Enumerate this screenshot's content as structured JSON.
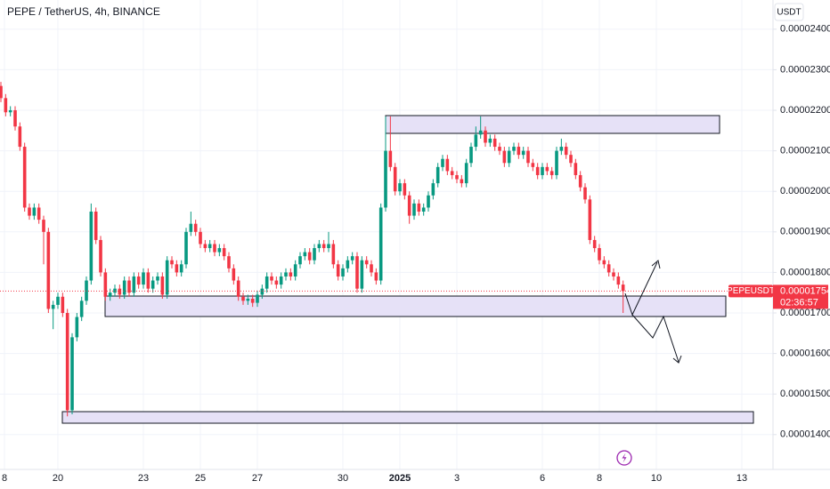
{
  "chart_data": {
    "type": "candlestick",
    "title": "PEPE / TetherUS, 4h, BINANCE",
    "currency": "USDT",
    "up_color": "#089981",
    "down_color": "#f23645",
    "grid": true,
    "ylim": [
      1.314e-05,
      2.472e-05
    ],
    "yticks": [
      {
        "value": 2.4e-05,
        "label": "0.00002400"
      },
      {
        "value": 2.3e-05,
        "label": "0.00002300"
      },
      {
        "value": 2.2e-05,
        "label": "0.00002200"
      },
      {
        "value": 2.1e-05,
        "label": "0.00002100"
      },
      {
        "value": 2e-05,
        "label": "0.00002000"
      },
      {
        "value": 1.9e-05,
        "label": "0.00001900"
      },
      {
        "value": 1.8e-05,
        "label": "0.00001800"
      },
      {
        "value": 1.7e-05,
        "label": "0.00001700"
      },
      {
        "value": 1.6e-05,
        "label": "0.00001600"
      },
      {
        "value": 1.5e-05,
        "label": "0.00001500"
      },
      {
        "value": 1.4e-05,
        "label": "0.00001400"
      }
    ],
    "xlim": [
      -0.19,
      162.56
    ],
    "xticks": [
      {
        "value": 0.75,
        "label": "8"
      },
      {
        "value": 12,
        "label": "20"
      },
      {
        "value": 30,
        "label": "23"
      },
      {
        "value": 42,
        "label": "25"
      },
      {
        "value": 54,
        "label": "27"
      },
      {
        "value": 72,
        "label": "30"
      },
      {
        "value": 84,
        "label": "2025"
      },
      {
        "value": 96,
        "label": "3"
      },
      {
        "value": 114,
        "label": "6"
      },
      {
        "value": 126,
        "label": "8"
      },
      {
        "value": 138,
        "label": "10"
      },
      {
        "value": 156,
        "label": "13"
      }
    ],
    "open": [
      2.26e-05,
      2.23e-05,
      2.195e-05,
      2.2e-05,
      2.16e-05,
      2.11e-05,
      1.96e-05,
      1.94e-05,
      1.96e-05,
      1.93e-05,
      1.9e-05,
      1.71e-05,
      1.72e-05,
      1.74e-05,
      1.7e-05,
      1.46e-05,
      1.64e-05,
      1.69e-05,
      1.73e-05,
      1.78e-05,
      1.95e-05,
      1.88e-05,
      1.8e-05,
      1.74e-05,
      1.75e-05,
      1.76e-05,
      1.745e-05,
      1.78e-05,
      1.75e-05,
      1.79e-05,
      1.77e-05,
      1.8e-05,
      1.76e-05,
      1.78e-05,
      1.79e-05,
      1.745e-05,
      1.83e-05,
      1.82e-05,
      1.8e-05,
      1.82e-05,
      1.9e-05,
      1.92e-05,
      1.9e-05,
      1.87e-05,
      1.86e-05,
      1.87e-05,
      1.85e-05,
      1.86e-05,
      1.84e-05,
      1.81e-05,
      1.78e-05,
      1.74e-05,
      1.73e-05,
      1.735e-05,
      1.725e-05,
      1.745e-05,
      1.76e-05,
      1.79e-05,
      1.78e-05,
      1.77e-05,
      1.79e-05,
      1.8e-05,
      1.79e-05,
      1.82e-05,
      1.84e-05,
      1.85e-05,
      1.83e-05,
      1.86e-05,
      1.87e-05,
      1.86e-05,
      1.87e-05,
      1.82e-05,
      1.79e-05,
      1.81e-05,
      1.83e-05,
      1.84e-05,
      1.76e-05,
      1.83e-05,
      1.82e-05,
      1.8e-05,
      1.78e-05,
      1.96e-05,
      2.1e-05,
      2.06e-05,
      2e-05,
      2.02e-05,
      1.99e-05,
      1.94e-05,
      1.97e-05,
      1.95e-05,
      1.96e-05,
      1.99e-05,
      2.02e-05,
      2.06e-05,
      2.08e-05,
      2.05e-05,
      2.04e-05,
      2.03e-05,
      2.02e-05,
      2.07e-05,
      2.11e-05,
      2.14e-05,
      2.15e-05,
      2.12e-05,
      2.13e-05,
      2.11e-05,
      2.1e-05,
      2.07e-05,
      2.1e-05,
      2.11e-05,
      2.09e-05,
      2.1e-05,
      2.07e-05,
      2.06e-05,
      2.04e-05,
      2.06e-05,
      2.05e-05,
      2.04e-05,
      2.1e-05,
      2.11e-05,
      2.09e-05,
      2.07e-05,
      2.04e-05,
      2.01e-05,
      1.98e-05,
      1.88e-05,
      1.86e-05,
      1.83e-05,
      1.82e-05,
      1.8e-05,
      1.79e-05,
      1.77e-05
    ],
    "high": [
      2.27e-05,
      2.24e-05,
      2.21e-05,
      2.21e-05,
      2.17e-05,
      2.12e-05,
      1.97e-05,
      1.97e-05,
      1.97e-05,
      1.94e-05,
      1.91e-05,
      1.73e-05,
      1.75e-05,
      1.75e-05,
      1.71e-05,
      1.65e-05,
      1.7e-05,
      1.74e-05,
      1.79e-05,
      1.97e-05,
      1.96e-05,
      1.89e-05,
      1.81e-05,
      1.76e-05,
      1.77e-05,
      1.77e-05,
      1.79e-05,
      1.79e-05,
      1.8e-05,
      1.8e-05,
      1.81e-05,
      1.81e-05,
      1.79e-05,
      1.8e-05,
      1.8e-05,
      1.84e-05,
      1.84e-05,
      1.83e-05,
      1.83e-05,
      1.91e-05,
      1.95e-05,
      1.93e-05,
      1.91e-05,
      1.88e-05,
      1.88e-05,
      1.88e-05,
      1.87e-05,
      1.87e-05,
      1.85e-05,
      1.82e-05,
      1.79e-05,
      1.75e-05,
      1.745e-05,
      1.745e-05,
      1.755e-05,
      1.77e-05,
      1.8e-05,
      1.8e-05,
      1.79e-05,
      1.8e-05,
      1.81e-05,
      1.81e-05,
      1.83e-05,
      1.85e-05,
      1.86e-05,
      1.86e-05,
      1.87e-05,
      1.88e-05,
      1.88e-05,
      1.9e-05,
      1.88e-05,
      1.83e-05,
      1.82e-05,
      1.84e-05,
      1.85e-05,
      1.85e-05,
      1.84e-05,
      1.84e-05,
      1.83e-05,
      1.81e-05,
      1.97e-05,
      2.185e-05,
      2.185e-05,
      2.07e-05,
      2.03e-05,
      2.03e-05,
      2e-05,
      1.98e-05,
      1.98e-05,
      1.97e-05,
      2e-05,
      2.03e-05,
      2.07e-05,
      2.09e-05,
      2.09e-05,
      2.06e-05,
      2.05e-05,
      2.04e-05,
      2.08e-05,
      2.12e-05,
      2.16e-05,
      2.185e-05,
      2.16e-05,
      2.14e-05,
      2.14e-05,
      2.12e-05,
      2.11e-05,
      2.11e-05,
      2.12e-05,
      2.12e-05,
      2.11e-05,
      2.11e-05,
      2.08e-05,
      2.07e-05,
      2.07e-05,
      2.07e-05,
      2.06e-05,
      2.11e-05,
      2.13e-05,
      2.12e-05,
      2.1e-05,
      2.08e-05,
      2.05e-05,
      2.02e-05,
      1.99e-05,
      1.89e-05,
      1.87e-05,
      1.84e-05,
      1.83e-05,
      1.81e-05,
      1.8e-05,
      1.78e-05
    ],
    "low": [
      2.22e-05,
      2.185e-05,
      2.185e-05,
      2.15e-05,
      2.1e-05,
      1.95e-05,
      1.93e-05,
      1.93e-05,
      1.92e-05,
      1.82e-05,
      1.7e-05,
      1.66e-05,
      1.71e-05,
      1.69e-05,
      1.445e-05,
      1.45e-05,
      1.63e-05,
      1.68e-05,
      1.72e-05,
      1.77e-05,
      1.87e-05,
      1.79e-05,
      1.73e-05,
      1.73e-05,
      1.74e-05,
      1.735e-05,
      1.735e-05,
      1.74e-05,
      1.74e-05,
      1.76e-05,
      1.76e-05,
      1.75e-05,
      1.75e-05,
      1.77e-05,
      1.735e-05,
      1.735e-05,
      1.81e-05,
      1.79e-05,
      1.79e-05,
      1.81e-05,
      1.89e-05,
      1.89e-05,
      1.86e-05,
      1.85e-05,
      1.85e-05,
      1.84e-05,
      1.84e-05,
      1.83e-05,
      1.8e-05,
      1.77e-05,
      1.73e-05,
      1.72e-05,
      1.72e-05,
      1.715e-05,
      1.715e-05,
      1.735e-05,
      1.75e-05,
      1.77e-05,
      1.76e-05,
      1.76e-05,
      1.78e-05,
      1.78e-05,
      1.78e-05,
      1.81e-05,
      1.83e-05,
      1.82e-05,
      1.82e-05,
      1.85e-05,
      1.85e-05,
      1.85e-05,
      1.81e-05,
      1.78e-05,
      1.78e-05,
      1.8e-05,
      1.82e-05,
      1.75e-05,
      1.75e-05,
      1.81e-05,
      1.79e-05,
      1.77e-05,
      1.77e-05,
      1.95e-05,
      2.05e-05,
      1.99e-05,
      1.99e-05,
      1.98e-05,
      1.92e-05,
      1.93e-05,
      1.94e-05,
      1.94e-05,
      1.95e-05,
      1.98e-05,
      2.01e-05,
      2.05e-05,
      2.04e-05,
      2.03e-05,
      2.02e-05,
      2.01e-05,
      2.01e-05,
      2.06e-05,
      2.1e-05,
      2.13e-05,
      2.11e-05,
      2.11e-05,
      2.1e-05,
      2.09e-05,
      2.06e-05,
      2.06e-05,
      2.09e-05,
      2.08e-05,
      2.08e-05,
      2.06e-05,
      2.05e-05,
      2.03e-05,
      2.03e-05,
      2.04e-05,
      2.03e-05,
      2.03e-05,
      2.09e-05,
      2.08e-05,
      2.06e-05,
      2.03e-05,
      2e-05,
      1.97e-05,
      1.87e-05,
      1.85e-05,
      1.82e-05,
      1.81e-05,
      1.79e-05,
      1.78e-05,
      1.76e-05,
      1.7e-05
    ],
    "close": [
      2.23e-05,
      2.195e-05,
      2.2e-05,
      2.16e-05,
      2.11e-05,
      1.96e-05,
      1.94e-05,
      1.96e-05,
      1.93e-05,
      1.9e-05,
      1.71e-05,
      1.72e-05,
      1.74e-05,
      1.7e-05,
      1.46e-05,
      1.64e-05,
      1.69e-05,
      1.73e-05,
      1.78e-05,
      1.95e-05,
      1.88e-05,
      1.8e-05,
      1.74e-05,
      1.75e-05,
      1.76e-05,
      1.745e-05,
      1.78e-05,
      1.75e-05,
      1.79e-05,
      1.77e-05,
      1.8e-05,
      1.76e-05,
      1.78e-05,
      1.79e-05,
      1.745e-05,
      1.83e-05,
      1.82e-05,
      1.8e-05,
      1.82e-05,
      1.9e-05,
      1.92e-05,
      1.9e-05,
      1.87e-05,
      1.86e-05,
      1.87e-05,
      1.85e-05,
      1.86e-05,
      1.84e-05,
      1.81e-05,
      1.78e-05,
      1.74e-05,
      1.73e-05,
      1.735e-05,
      1.725e-05,
      1.745e-05,
      1.76e-05,
      1.79e-05,
      1.78e-05,
      1.77e-05,
      1.79e-05,
      1.8e-05,
      1.79e-05,
      1.82e-05,
      1.84e-05,
      1.85e-05,
      1.83e-05,
      1.86e-05,
      1.87e-05,
      1.86e-05,
      1.87e-05,
      1.82e-05,
      1.79e-05,
      1.81e-05,
      1.83e-05,
      1.84e-05,
      1.76e-05,
      1.83e-05,
      1.82e-05,
      1.8e-05,
      1.78e-05,
      1.96e-05,
      2.1e-05,
      2.06e-05,
      2e-05,
      2.02e-05,
      1.99e-05,
      1.94e-05,
      1.97e-05,
      1.95e-05,
      1.96e-05,
      1.99e-05,
      2.02e-05,
      2.06e-05,
      2.08e-05,
      2.05e-05,
      2.04e-05,
      2.03e-05,
      2.02e-05,
      2.07e-05,
      2.11e-05,
      2.14e-05,
      2.15e-05,
      2.12e-05,
      2.13e-05,
      2.11e-05,
      2.1e-05,
      2.07e-05,
      2.1e-05,
      2.11e-05,
      2.09e-05,
      2.1e-05,
      2.07e-05,
      2.06e-05,
      2.04e-05,
      2.06e-05,
      2.05e-05,
      2.04e-05,
      2.1e-05,
      2.11e-05,
      2.09e-05,
      2.07e-05,
      2.04e-05,
      2.01e-05,
      1.98e-05,
      1.88e-05,
      1.86e-05,
      1.83e-05,
      1.82e-05,
      1.8e-05,
      1.79e-05,
      1.77e-05,
      1.754e-05
    ],
    "price_tag": {
      "symbol": "PEPEUSDT",
      "price": "0.00001754",
      "countdown": "02:36:57",
      "color": "#f23645"
    }
  }
}
